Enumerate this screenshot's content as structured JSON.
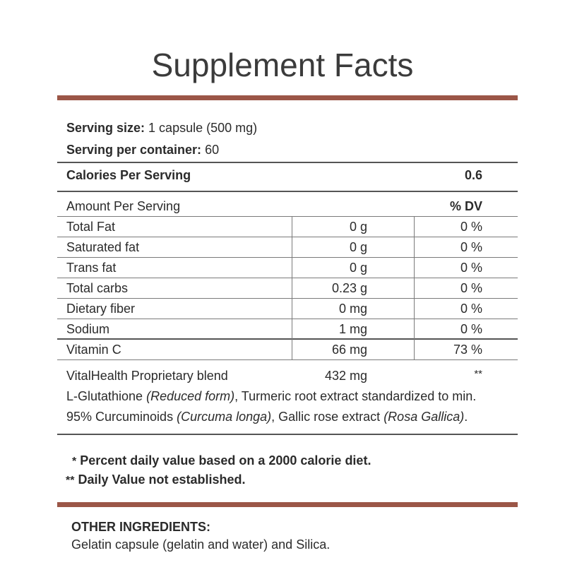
{
  "title": "Supplement Facts",
  "serving": {
    "size_label": "Serving size:",
    "size_value": " 1 capsule (500 mg)",
    "per_container_label": "Serving per container:",
    "per_container_value": " 60"
  },
  "calories": {
    "label": "Calories Per Serving",
    "value": "0.6"
  },
  "table_header": {
    "amount_label": "Amount Per Serving",
    "dv_label": "% DV"
  },
  "nutrients": [
    {
      "name": "Total Fat",
      "amount": "0 g",
      "dv": "0 %"
    },
    {
      "name": "Saturated fat",
      "amount": "0 g",
      "dv": "0 %"
    },
    {
      "name": "Trans fat",
      "amount": "0 g",
      "dv": "0 %"
    },
    {
      "name": "Total carbs",
      "amount": "0.23 g",
      "dv": "0 %"
    },
    {
      "name": "Dietary fiber",
      "amount": "0 mg",
      "dv": "0 %"
    },
    {
      "name": "Sodium",
      "amount": "1 mg",
      "dv": "0 %"
    },
    {
      "name": "Vitamin C",
      "amount": "66 mg",
      "dv": "73 %"
    }
  ],
  "blend": {
    "name": "VitalHealth Proprietary blend",
    "amount": "432 mg",
    "dv": "**",
    "line1_a": "L-Glutathione ",
    "line1_b": "(Reduced form)",
    "line1_c": ", Turmeric root extract standardized to min.",
    "line2_a": "95% Curcuminoids ",
    "line2_b": "(Curcuma longa)",
    "line2_c": ", Gallic rose extract ",
    "line2_d": "(Rosa Gallica)",
    "line2_e": "."
  },
  "footnotes": {
    "star1": "*",
    "note1": "Percent daily value based on a 2000 calorie diet.",
    "star2": "**",
    "note2": "Daily Value not established."
  },
  "other_ingredients": {
    "heading": "OTHER INGREDIENTS:",
    "text": "Gelatin capsule (gelatin and water) and Silica."
  },
  "colors": {
    "accent_bar": "#9b5647",
    "text": "#2b2b2b"
  }
}
